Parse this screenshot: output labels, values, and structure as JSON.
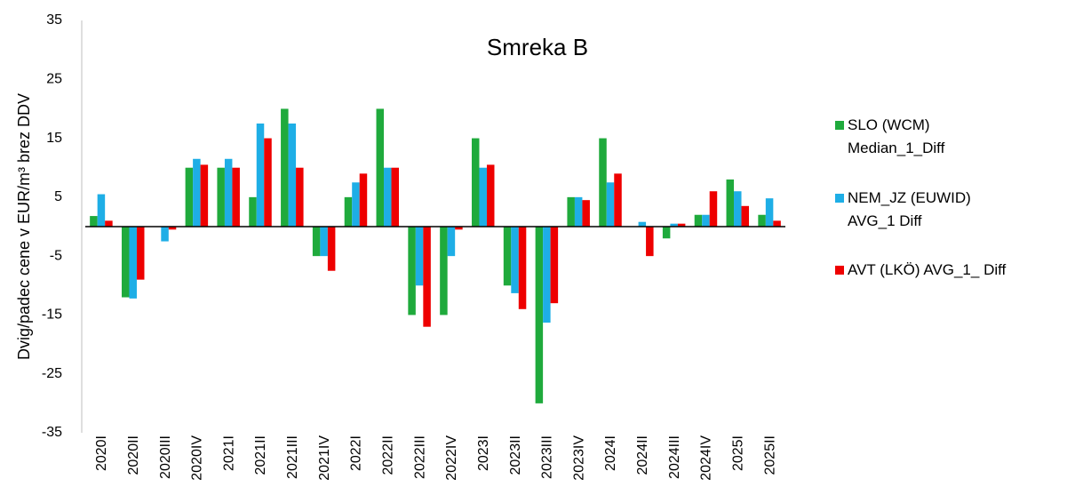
{
  "chart_data": {
    "type": "bar",
    "title": "Smreka B",
    "y_label": "Dvig/padec cene v EUR/m³ brez DDV",
    "categories": [
      "2020I",
      "2020II",
      "2020III",
      "2020IV",
      "2021I",
      "2021II",
      "2021III",
      "2021IV",
      "2022I",
      "2022II",
      "2022III",
      "2022IV",
      "2023I",
      "2023II",
      "2023III",
      "2023IV",
      "2024I",
      "2024II",
      "2024III",
      "2024IV",
      "2025I",
      "2025II"
    ],
    "series": [
      {
        "name": "SLO (WCM) Median_1_Diff",
        "color": "#1faa3c",
        "values": [
          1.8,
          -12,
          0,
          10,
          10,
          5,
          20,
          -5,
          5,
          20,
          -15,
          -15,
          15,
          -10,
          -30,
          5,
          15,
          0,
          -2,
          2,
          8,
          2
        ]
      },
      {
        "name": "NEM_JZ (EUWID) AVG_1 Diff",
        "color": "#1eaee6",
        "values": [
          5.5,
          -12.2,
          -2.5,
          11.5,
          11.5,
          17.5,
          17.5,
          -5,
          7.5,
          10,
          -10,
          -5,
          10,
          -11.3,
          -16.3,
          5,
          7.5,
          0.8,
          0.5,
          2,
          6,
          4.8
        ]
      },
      {
        "name": "AVT (LKÖ) AVG_1_ Diff",
        "color": "#ee0000",
        "values": [
          1,
          -9,
          -0.5,
          10.5,
          10,
          15,
          10,
          -7.5,
          9,
          10,
          -17,
          -0.5,
          10.5,
          -14,
          -13,
          4.5,
          9,
          -5,
          0.5,
          6,
          3.5,
          1
        ]
      }
    ],
    "ylim": [
      -35,
      35
    ],
    "yticks": [
      -35,
      -25,
      -15,
      -5,
      5,
      15,
      25,
      35
    ],
    "grid": false
  }
}
